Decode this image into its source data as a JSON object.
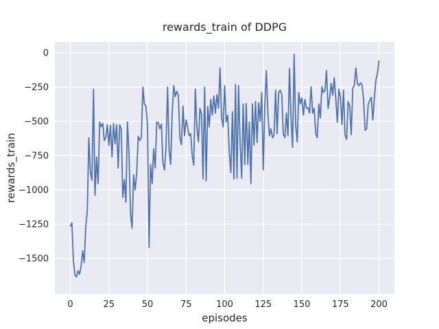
{
  "chart_data": {
    "type": "line",
    "title": "rewards_train of DDPG",
    "xlabel": "episodes",
    "ylabel": "rewards_train",
    "legend": "none",
    "grid": true,
    "xlim": [
      -10,
      210
    ],
    "ylim": [
      -1760,
      80
    ],
    "x_ticks": [
      0,
      25,
      50,
      75,
      100,
      125,
      150,
      175,
      200
    ],
    "x_tick_labels": [
      "0",
      "25",
      "50",
      "75",
      "100",
      "125",
      "150",
      "175",
      "200"
    ],
    "y_ticks": [
      0,
      -250,
      -500,
      -750,
      -1000,
      -1250,
      -1500
    ],
    "y_tick_labels": [
      "0",
      "−250",
      "−500",
      "−750",
      "−1000",
      "−1250",
      "−1500"
    ],
    "style": {
      "fig_bg": "#ffffff",
      "plot_bg": "#eaeaf2",
      "grid_color": "#ffffff",
      "text_color": "#262626",
      "line_color": "#4c72b0",
      "line_width": 1.8
    },
    "series": [
      {
        "name": "rewards_train",
        "color": "#4c72b0",
        "x_start": 0,
        "x_step": 1,
        "values": [
          -1265,
          -1240,
          -1515,
          -1620,
          -1635,
          -1590,
          -1615,
          -1555,
          -1445,
          -1530,
          -1270,
          -1150,
          -620,
          -875,
          -930,
          -265,
          -1040,
          -760,
          -955,
          -505,
          -540,
          -515,
          -640,
          -620,
          -525,
          -675,
          -530,
          -760,
          -515,
          -665,
          -525,
          -840,
          -525,
          -560,
          -1055,
          -925,
          -1090,
          -505,
          -720,
          -1175,
          -1280,
          -890,
          -1000,
          -875,
          -610,
          -640,
          -620,
          -250,
          -375,
          -390,
          -520,
          -1420,
          -815,
          -955,
          -700,
          -840,
          -505,
          -510,
          -555,
          -520,
          -800,
          -855,
          -690,
          -250,
          -705,
          -815,
          -440,
          -240,
          -320,
          -280,
          -310,
          -620,
          -670,
          -390,
          -605,
          -490,
          -540,
          -605,
          -590,
          -755,
          -820,
          -265,
          -540,
          -650,
          -405,
          -450,
          -920,
          -250,
          -935,
          -390,
          -540,
          -340,
          -455,
          -315,
          -440,
          -305,
          -405,
          -110,
          -470,
          -540,
          -240,
          -505,
          -455,
          -730,
          -875,
          -430,
          -920,
          -230,
          -915,
          -240,
          -650,
          -915,
          -373,
          -815,
          -370,
          -815,
          -505,
          -955,
          -373,
          -675,
          -355,
          -655,
          -365,
          -500,
          -290,
          -855,
          -390,
          -130,
          -440,
          -605,
          -555,
          -620,
          -600,
          -273,
          -590,
          -290,
          -273,
          -305,
          -590,
          -620,
          -440,
          -605,
          -115,
          -480,
          -690,
          -10,
          -525,
          -650,
          -290,
          -373,
          -330,
          -455,
          -340,
          -405,
          -400,
          -440,
          -248,
          -440,
          -405,
          -590,
          -620,
          -373,
          -475,
          -248,
          -290,
          -273,
          -130,
          -407,
          -330,
          -223,
          -310,
          -182,
          -330,
          -507,
          -265,
          -323,
          -523,
          -273,
          -598,
          -632,
          -357,
          -390,
          -598,
          -257,
          -240,
          -110,
          -225,
          -240,
          -220,
          -235,
          -340,
          -565,
          -555,
          -375,
          -350,
          -325,
          -490,
          -330,
          -200,
          -150,
          -60
        ]
      }
    ]
  }
}
